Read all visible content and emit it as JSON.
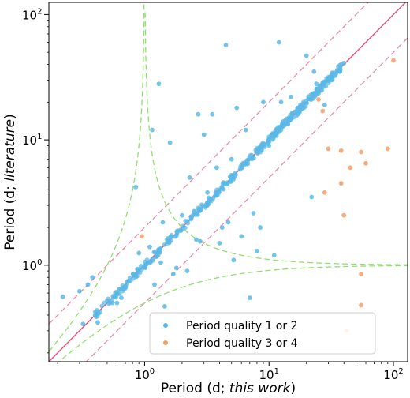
{
  "chart_data": {
    "type": "scatter",
    "title": "",
    "xlabel_prefix": "Period (d; ",
    "xlabel_italic": "this work",
    "xlabel_suffix": ")",
    "ylabel_prefix": "Period (d; ",
    "ylabel_italic": "literature",
    "ylabel_suffix": ")",
    "xscale": "log",
    "yscale": "log",
    "xlim": [
      0.17,
      130
    ],
    "ylim": [
      0.17,
      125
    ],
    "grid": false,
    "legend_position": "lower-right",
    "x_ticks": [
      {
        "value": 1,
        "base": "10",
        "exp": "0"
      },
      {
        "value": 10,
        "base": "10",
        "exp": "1"
      },
      {
        "value": 100,
        "base": "10",
        "exp": "2"
      }
    ],
    "y_ticks": [
      {
        "value": 1,
        "base": "10",
        "exp": "0"
      },
      {
        "value": 10,
        "base": "10",
        "exp": "1"
      },
      {
        "value": 100,
        "base": "10",
        "exp": "2"
      }
    ],
    "reference_lines": [
      {
        "kind": "identity",
        "color": "#e0507a",
        "style": "solid"
      },
      {
        "kind": "factor",
        "factor": 2,
        "color": "#e88aa8",
        "style": "dashed"
      },
      {
        "kind": "factor",
        "factor": 0.5,
        "color": "#e88aa8",
        "style": "dashed"
      },
      {
        "kind": "beat_alias",
        "color": "#90e070",
        "style": "dashed"
      }
    ],
    "series": [
      {
        "name": "Period quality 1 or 2",
        "color": "#5bb8e6",
        "points": [
          [
            0.22,
            0.56
          ],
          [
            0.3,
            0.62
          ],
          [
            0.32,
            0.34
          ],
          [
            0.35,
            0.7
          ],
          [
            0.38,
            0.8
          ],
          [
            0.4,
            0.4
          ],
          [
            0.42,
            0.35
          ],
          [
            0.55,
            0.5
          ],
          [
            0.6,
            0.5
          ],
          [
            0.65,
            0.55
          ],
          [
            0.75,
            0.75
          ],
          [
            0.85,
            4.2
          ],
          [
            0.9,
            1.25
          ],
          [
            1.1,
            1.4
          ],
          [
            1.15,
            12
          ],
          [
            1.2,
            0.7
          ],
          [
            1.3,
            28
          ],
          [
            1.35,
            1.05
          ],
          [
            1.4,
            2.2
          ],
          [
            1.45,
            0.47
          ],
          [
            1.6,
            9.5
          ],
          [
            1.7,
            0.85
          ],
          [
            1.8,
            0.95
          ],
          [
            2.0,
            2.5
          ],
          [
            2.2,
            0.9
          ],
          [
            2.3,
            5
          ],
          [
            2.5,
            2.7
          ],
          [
            2.6,
            1.6
          ],
          [
            2.7,
            16
          ],
          [
            2.8,
            1.55
          ],
          [
            3.0,
            11
          ],
          [
            3.2,
            3.8
          ],
          [
            3.5,
            16
          ],
          [
            3.8,
            6
          ],
          [
            4.0,
            1.5
          ],
          [
            4.2,
            2.0
          ],
          [
            4.5,
            57
          ],
          [
            4.7,
            2.2
          ],
          [
            5.0,
            7
          ],
          [
            5.2,
            1.1
          ],
          [
            5.5,
            18
          ],
          [
            6.0,
            1.7
          ],
          [
            6.5,
            12
          ],
          [
            7.0,
            0.55
          ],
          [
            7.5,
            2.6
          ],
          [
            8.0,
            1.3
          ],
          [
            8.5,
            2.0
          ],
          [
            9.0,
            20
          ],
          [
            10,
            9
          ],
          [
            11,
            1.2
          ],
          [
            12,
            60
          ],
          [
            12.5,
            20
          ],
          [
            13,
            14
          ],
          [
            15,
            22
          ],
          [
            17,
            18
          ],
          [
            19,
            18
          ],
          [
            20,
            47
          ],
          [
            22,
            3.5
          ],
          [
            23,
            35
          ],
          [
            24,
            28
          ],
          [
            25,
            25
          ],
          [
            28,
            19
          ],
          [
            30,
            31
          ],
          [
            35,
            35
          ],
          [
            38,
            40
          ],
          [
            40,
            41
          ],
          [
            11.5,
            12.2
          ],
          [
            18,
            17.5
          ]
        ],
        "diagonal_band": {
          "x_from": 0.4,
          "x_to": 38,
          "count": 420,
          "scatter": 0.06
        }
      },
      {
        "name": "Period quality 3 or 4",
        "color": "#f0a06a",
        "points": [
          [
            0.95,
            1.7
          ],
          [
            25,
            21
          ],
          [
            27,
            17
          ],
          [
            30,
            8.5
          ],
          [
            38,
            8.2
          ],
          [
            38,
            4.5
          ],
          [
            40,
            2.5
          ],
          [
            45,
            6
          ],
          [
            55,
            8
          ],
          [
            60,
            6.5
          ],
          [
            55,
            0.85
          ],
          [
            55,
            0.48
          ],
          [
            42,
            0.3
          ],
          [
            90,
            8.5
          ],
          [
            100,
            43
          ],
          [
            28,
            3.8
          ]
        ]
      }
    ]
  }
}
